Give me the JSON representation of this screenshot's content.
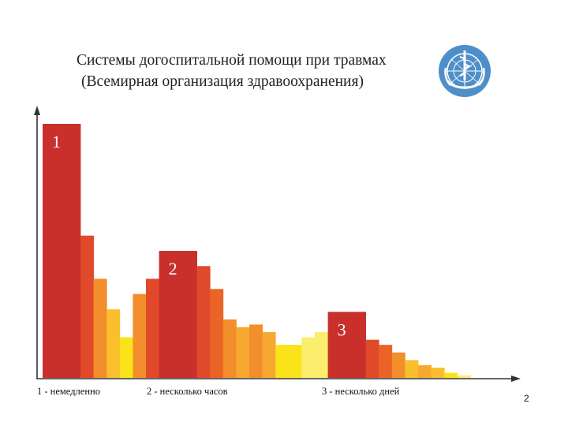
{
  "title_line1": "Системы догоспитальной помощи при травмах",
  "title_line2": "(Всемирная организация здравоохранения)",
  "logo": {
    "name": "who-emblem-icon",
    "color": "#4f8fc9"
  },
  "page_number": "2",
  "colors": {
    "red": "#c9302c",
    "red_orange": "#e04a2a",
    "orange_red": "#ea6428",
    "orange": "#f28e2b",
    "light_orange": "#f7a830",
    "amber": "#f9bf2c",
    "yellow": "#fbe319",
    "pale_yellow": "#fbee6c",
    "axis": "#333333"
  },
  "chart_data": {
    "type": "bar",
    "title": "Системы догоспитальной помощи при травмах (Всемирная организация здравоохранения)",
    "xlabel": "",
    "ylabel": "",
    "ylim": [
      0,
      100
    ],
    "grid": false,
    "legend": "none",
    "categories": [
      "1 - немедленно",
      "2 - несколько часов",
      "3 - несколько дней"
    ],
    "peak_labels": [
      "1",
      "2",
      "3"
    ],
    "bars": [
      {
        "value": 100,
        "color": "red",
        "label": "1"
      },
      {
        "value": 56,
        "color": "red_orange"
      },
      {
        "value": 39,
        "color": "orange"
      },
      {
        "value": 27,
        "color": "amber"
      },
      {
        "value": 16,
        "color": "yellow"
      },
      {
        "value": 33,
        "color": "orange"
      },
      {
        "value": 39,
        "color": "red_orange"
      },
      {
        "value": 50,
        "color": "red",
        "label": "2"
      },
      {
        "value": 44,
        "color": "red_orange"
      },
      {
        "value": 35,
        "color": "orange_red"
      },
      {
        "value": 23,
        "color": "orange"
      },
      {
        "value": 20,
        "color": "light_orange"
      },
      {
        "value": 21,
        "color": "orange"
      },
      {
        "value": 18,
        "color": "light_orange"
      },
      {
        "value": 13,
        "color": "yellow"
      },
      {
        "value": 13,
        "color": "yellow"
      },
      {
        "value": 16,
        "color": "pale_yellow"
      },
      {
        "value": 18,
        "color": "pale_yellow"
      },
      {
        "value": 26,
        "color": "red",
        "label": "3"
      },
      {
        "value": 15,
        "color": "red_orange"
      },
      {
        "value": 13,
        "color": "orange_red"
      },
      {
        "value": 10,
        "color": "orange"
      },
      {
        "value": 7,
        "color": "amber"
      },
      {
        "value": 5,
        "color": "light_orange"
      },
      {
        "value": 4,
        "color": "amber"
      },
      {
        "value": 2,
        "color": "yellow"
      },
      {
        "value": 1,
        "color": "pale_yellow"
      }
    ]
  }
}
